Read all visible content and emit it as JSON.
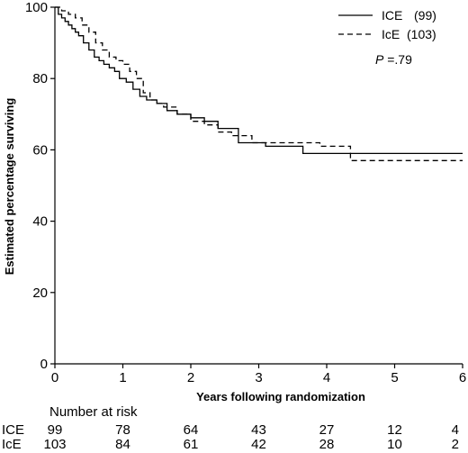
{
  "chart_data": {
    "type": "line",
    "title": "",
    "xlabel": "Years following randomization",
    "ylabel": "Estimated percentage surviving",
    "xlim": [
      0,
      6
    ],
    "ylim": [
      0,
      100
    ],
    "xticks": [
      0,
      1,
      2,
      3,
      4,
      5,
      6
    ],
    "yticks": [
      0,
      20,
      40,
      60,
      80,
      100
    ],
    "grid": false,
    "legend_position": "top-right",
    "series": [
      {
        "name": "ICE",
        "legend_label": "ICE",
        "legend_count": "(99)",
        "line_style": "solid",
        "step": true,
        "x": [
          0,
          0.05,
          0.1,
          0.15,
          0.2,
          0.25,
          0.3,
          0.35,
          0.42,
          0.5,
          0.58,
          0.65,
          0.72,
          0.8,
          0.88,
          0.95,
          1.05,
          1.15,
          1.25,
          1.35,
          1.5,
          1.65,
          1.8,
          2.0,
          2.2,
          2.4,
          2.7,
          3.1,
          3.65,
          4.4,
          6.0
        ],
        "y": [
          100,
          98,
          97,
          96,
          95,
          94,
          93,
          92,
          90,
          88,
          86,
          85,
          84,
          83,
          82,
          80,
          79,
          77,
          75,
          74,
          73,
          71,
          70,
          69,
          68,
          66,
          62,
          61,
          59,
          59,
          59
        ]
      },
      {
        "name": "IcE",
        "legend_label": "IcE",
        "legend_count": "(103)",
        "line_style": "dashed",
        "step": true,
        "x": [
          0,
          0.1,
          0.2,
          0.3,
          0.4,
          0.5,
          0.6,
          0.7,
          0.8,
          0.9,
          1.0,
          1.1,
          1.2,
          1.3,
          1.4,
          1.5,
          1.6,
          1.8,
          2.0,
          2.2,
          2.4,
          2.6,
          2.9,
          3.3,
          3.9,
          4.35,
          6.0
        ],
        "y": [
          100,
          99,
          98,
          97,
          95,
          93,
          90,
          88,
          86,
          85,
          84,
          82,
          80,
          76,
          74,
          73,
          72,
          70,
          68,
          67,
          65,
          64,
          62,
          62,
          61,
          57,
          57
        ]
      }
    ],
    "annotations": [
      {
        "text_italic": "P",
        "text": " =.79"
      }
    ],
    "risk_table": {
      "title": "Number at risk",
      "rows": [
        {
          "label": "ICE",
          "values": [
            "99",
            "78",
            "64",
            "43",
            "27",
            "12",
            "4"
          ]
        },
        {
          "label": "IcE",
          "values": [
            "103",
            "84",
            "61",
            "42",
            "28",
            "10",
            "2"
          ]
        }
      ]
    }
  }
}
